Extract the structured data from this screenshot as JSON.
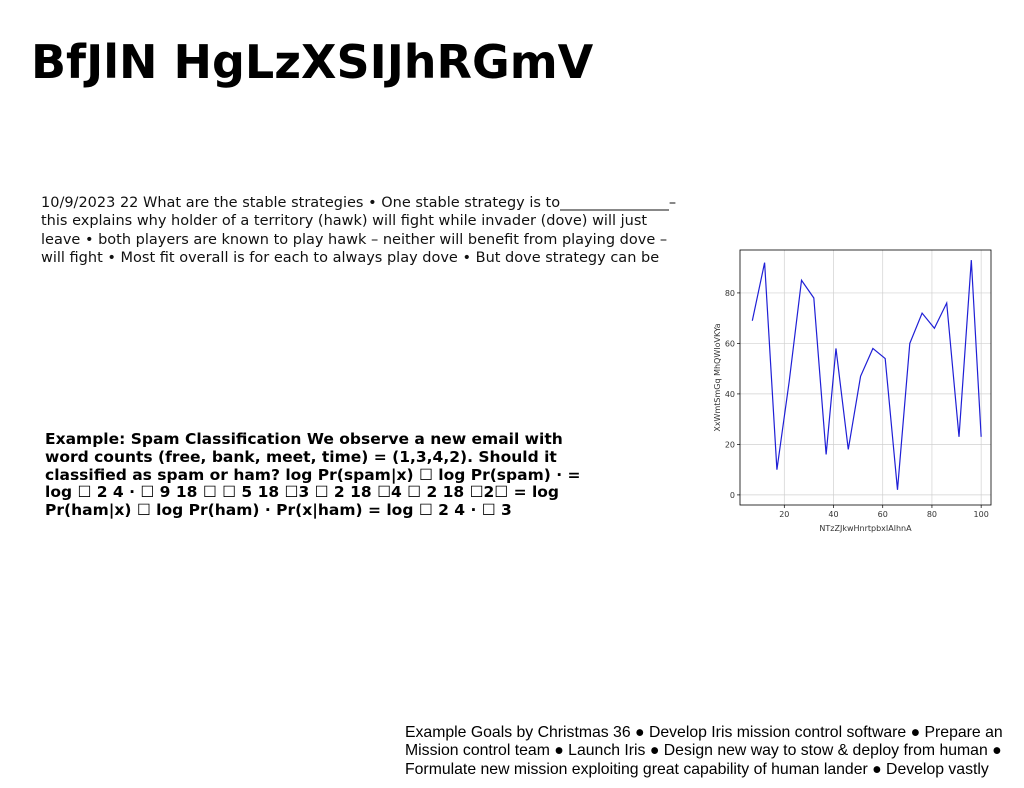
{
  "slide": {
    "title": "BfJlN HgLzXSIJhRGmV",
    "text_blocks": [
      "10/9/2023 22 What are the stable strategies • One stable strategy is to_______________– this explains why holder of a territory (hawk) will fight while invader (dove) will just leave • both players are known to play hawk – neither will benefit from playing dove – will fight • Most fit overall is for each to always play dove • But dove strategy can be",
      "Example: Spam Classification We observe a new email with word counts (free, bank, meet, time) = (1,3,4,2). Should it classified as spam or ham? log Pr(spam|x) ☐ log Pr(spam) · = log ☐ 2 4 · ☐ 9 18 ☐ ☐ 5 18 ☐3 ☐ 2 18 ☐4 ☐ 2 18 ☐2☐ = log Pr(ham|x) ☐ log Pr(ham) · Pr(x|ham) = log ☐ 2 4 · ☐ 3",
      "Example Goals by Christmas 36 ● Develop Iris mission control software ● Prepare an Mission control team ● Launch Iris ● Design new way to stow & deploy from human ● Formulate new mission exploiting great capability of human lander ● Develop vastly"
    ]
  },
  "chart_data": {
    "type": "line",
    "title": "",
    "xlabel": "NTzZJkwHnrtpbxIAlhnA",
    "ylabel": "XxWmtSmGq MhQWIoVKYa",
    "x": [
      7,
      12,
      17,
      22,
      27,
      32,
      37,
      41,
      46,
      51,
      56,
      61,
      66,
      71,
      76,
      81,
      86,
      91,
      96,
      100
    ],
    "series": [
      {
        "values": [
          69,
          92,
          10,
          45,
          85,
          78,
          16,
          58,
          18,
          47,
          58,
          54,
          2,
          60,
          72,
          66,
          76,
          23,
          93,
          23
        ]
      }
    ],
    "xlim": [
      2,
      104
    ],
    "ylim": [
      -4,
      97
    ],
    "xticks": [
      20,
      40,
      60,
      80,
      100
    ],
    "yticks": [
      0,
      20,
      40,
      60,
      80
    ],
    "grid": true,
    "line_color": "#1f1fd6"
  }
}
